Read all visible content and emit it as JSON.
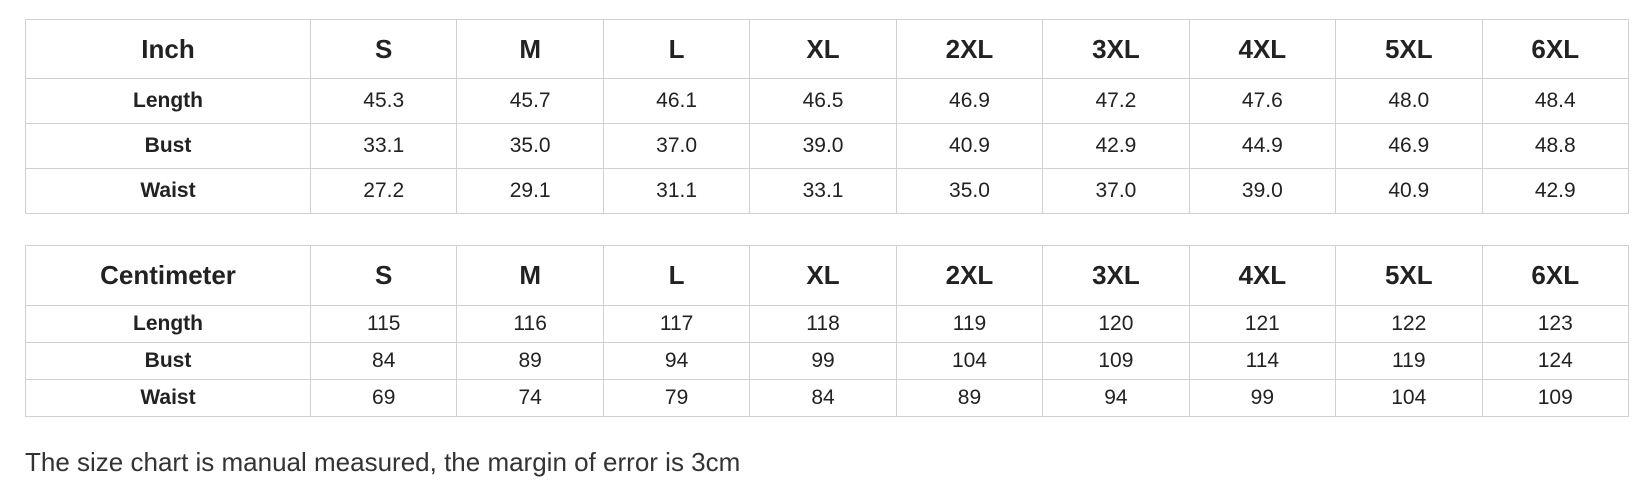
{
  "note": "The size chart is manual measured, the margin of error is 3cm",
  "colors": {
    "background": "#ffffff",
    "border": "#d0d0d0",
    "text": "#222222",
    "note_text": "#333333"
  },
  "chart_data": [
    {
      "type": "table",
      "unit": "Inch",
      "columns": [
        "Inch",
        "S",
        "M",
        "L",
        "XL",
        "2XL",
        "3XL",
        "4XL",
        "5XL",
        "6XL"
      ],
      "rows": [
        {
          "label": "Length",
          "values": [
            "45.3",
            "45.7",
            "46.1",
            "46.5",
            "46.9",
            "47.2",
            "47.6",
            "48.0",
            "48.4"
          ]
        },
        {
          "label": "Bust",
          "values": [
            "33.1",
            "35.0",
            "37.0",
            "39.0",
            "40.9",
            "42.9",
            "44.9",
            "46.9",
            "48.8"
          ]
        },
        {
          "label": "Waist",
          "values": [
            "27.2",
            "29.1",
            "31.1",
            "33.1",
            "35.0",
            "37.0",
            "39.0",
            "40.9",
            "42.9"
          ]
        }
      ]
    },
    {
      "type": "table",
      "unit": "Centimeter",
      "columns": [
        "Centimeter",
        "S",
        "M",
        "L",
        "XL",
        "2XL",
        "3XL",
        "4XL",
        "5XL",
        "6XL"
      ],
      "rows": [
        {
          "label": "Length",
          "values": [
            "115",
            "116",
            "117",
            "118",
            "119",
            "120",
            "121",
            "122",
            "123"
          ]
        },
        {
          "label": "Bust",
          "values": [
            "84",
            "89",
            "94",
            "99",
            "104",
            "109",
            "114",
            "119",
            "124"
          ]
        },
        {
          "label": "Waist",
          "values": [
            "69",
            "74",
            "79",
            "84",
            "89",
            "94",
            "99",
            "104",
            "109"
          ]
        }
      ]
    }
  ]
}
